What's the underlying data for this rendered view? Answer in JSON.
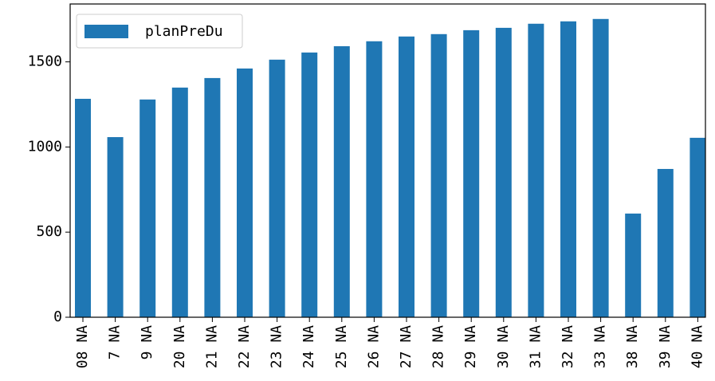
{
  "chart_data": {
    "type": "bar",
    "categories": [
      "08 NA",
      "7 NA",
      "9 NA",
      "20 NA",
      "21 NA",
      "22 NA",
      "23 NA",
      "24 NA",
      "25 NA",
      "26 NA",
      "27 NA",
      "28 NA",
      "29 NA",
      "30 NA",
      "31 NA",
      "32 NA",
      "33 NA",
      "38 NA",
      "39 NA",
      "40 NA"
    ],
    "series": [
      {
        "name": "planPreDu",
        "color": "#1f77b4",
        "values": [
          1283,
          1058,
          1279,
          1349,
          1405,
          1461,
          1513,
          1555,
          1592,
          1621,
          1649,
          1663,
          1686,
          1700,
          1724,
          1738,
          1752,
          609,
          871,
          1054
        ]
      }
    ],
    "ylim": [
      0,
      1840
    ],
    "yticks": [
      0,
      500,
      1000,
      1500
    ],
    "legend": "upper left"
  }
}
